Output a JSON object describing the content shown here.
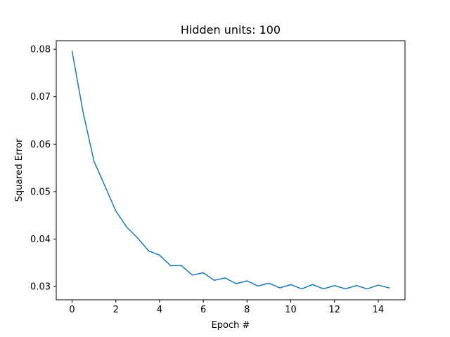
{
  "chart_data": {
    "type": "line",
    "title": "Hidden units: 100",
    "xlabel": "Epoch #",
    "ylabel": "Squared Error",
    "xlim": [
      -0.725,
      15.225
    ],
    "ylim": [
      0.0272,
      0.0818
    ],
    "x_ticks": [
      0,
      2,
      4,
      6,
      8,
      10,
      12,
      14
    ],
    "y_ticks": [
      0.03,
      0.04,
      0.05,
      0.06,
      0.07,
      0.08
    ],
    "x_tick_labels": [
      "0",
      "2",
      "4",
      "6",
      "8",
      "10",
      "12",
      "14"
    ],
    "y_tick_labels": [
      "0.03",
      "0.04",
      "0.05",
      "0.06",
      "0.07",
      "0.08"
    ],
    "grid": false,
    "legend": false,
    "series": [
      {
        "color": "#1f77b4",
        "x": [
          0,
          0.5,
          1,
          1.5,
          2,
          2.5,
          3,
          3.5,
          4,
          4.5,
          5,
          5.5,
          6,
          6.5,
          7,
          7.5,
          8,
          8.5,
          9,
          9.5,
          10,
          10.5,
          11,
          11.5,
          12,
          12.5,
          13,
          13.5,
          14,
          14.5
        ],
        "values": [
          0.0796,
          0.0668,
          0.0564,
          0.0512,
          0.0459,
          0.0425,
          0.0402,
          0.0375,
          0.0366,
          0.0344,
          0.0344,
          0.0324,
          0.0329,
          0.0313,
          0.0318,
          0.0306,
          0.0312,
          0.0301,
          0.0307,
          0.0297,
          0.0304,
          0.0295,
          0.0304,
          0.0295,
          0.0302,
          0.0295,
          0.0302,
          0.0295,
          0.0303,
          0.0297
        ]
      }
    ]
  }
}
